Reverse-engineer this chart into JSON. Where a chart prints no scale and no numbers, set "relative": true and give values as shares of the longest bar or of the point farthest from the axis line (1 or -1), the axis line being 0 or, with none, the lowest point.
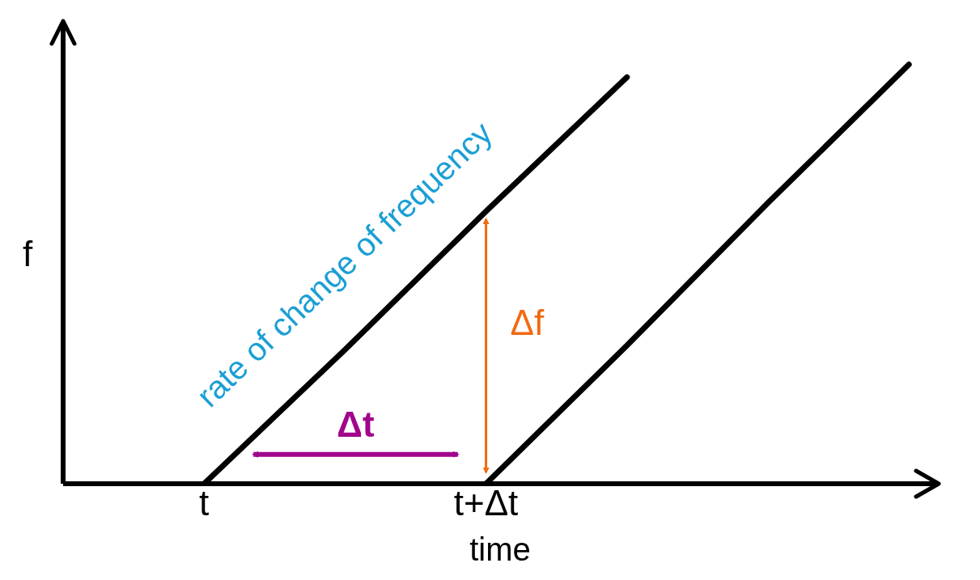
{
  "chart_data": {
    "type": "line",
    "relative": true,
    "ylabel": "f",
    "xlabel": "time",
    "categories": [
      null,
      "t",
      null,
      "t+Δt",
      null,
      null,
      null
    ],
    "marker": "none",
    "grid": false,
    "series": [
      {
        "values": [
          null,
          0,
          0.32,
          0.65,
          0.97,
          null,
          null
        ],
        "color": "#000000"
      },
      {
        "values": [
          null,
          null,
          null,
          0,
          0.33,
          0.67,
          1
        ],
        "color": "#000000"
      }
    ],
    "annotations": [
      "rate of change of frequency",
      "Δt",
      "Δf"
    ]
  }
}
